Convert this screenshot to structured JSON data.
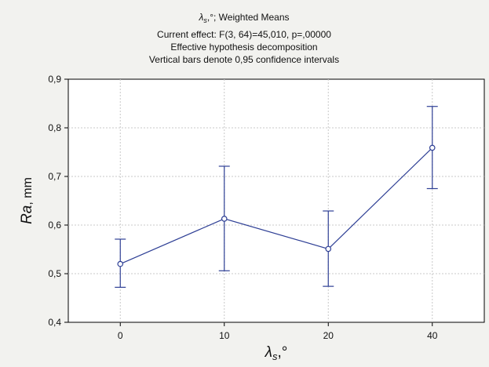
{
  "chart_data": {
    "type": "line",
    "title_lines": [
      "; Weighted Means",
      "Current effect: F(3, 64)=45,010, p=,00000",
      "Effective hypothesis decomposition",
      "Vertical bars denote 0,95 confidence intervals"
    ],
    "title_symbol": "λ",
    "title_symbol_sub": "s",
    "title_symbol_unit": ",°",
    "categories": [
      "0",
      "10",
      "20",
      "40"
    ],
    "series": [
      {
        "values": [
          0.52,
          0.613,
          0.551,
          0.759
        ],
        "ci_low": [
          0.472,
          0.506,
          0.474,
          0.675
        ],
        "ci_high": [
          0.571,
          0.721,
          0.629,
          0.844
        ]
      }
    ],
    "ylim": [
      0.4,
      0.9
    ],
    "yticks": [
      "0,4",
      "0,5",
      "0,6",
      "0,7",
      "0,8",
      "0,9"
    ],
    "ylabel_italic": "Ra",
    "ylabel_rest": ", mm",
    "xlabel_symbol": "λ",
    "xlabel_sub": "s",
    "xlabel_unit": ",°",
    "grid": true,
    "colors": {
      "series": "#2e3f95",
      "background": "#f2f2ef",
      "plot": "#ffffff"
    }
  }
}
